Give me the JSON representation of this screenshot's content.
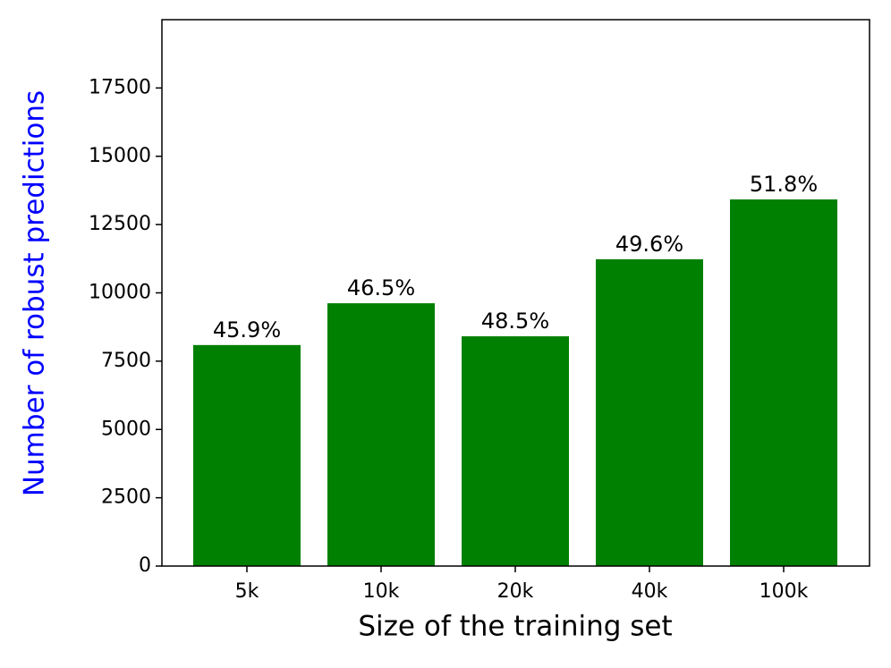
{
  "chart_data": {
    "type": "bar",
    "xlabel": "Size of the training set",
    "ylabel": "Number of robust predictions",
    "categories": [
      "5k",
      "10k",
      "20k",
      "40k",
      "100k"
    ],
    "values": [
      8090,
      9620,
      8410,
      11230,
      13420
    ],
    "annotations": [
      "45.9%",
      "46.5%",
      "48.5%",
      "49.6%",
      "51.8%"
    ],
    "color": "#008000",
    "ylabel_color": "#0000ff",
    "ylim": [
      0,
      20000
    ],
    "yticks": [
      0,
      2500,
      5000,
      7500,
      10000,
      12500,
      15000,
      17500
    ],
    "grid": false
  }
}
